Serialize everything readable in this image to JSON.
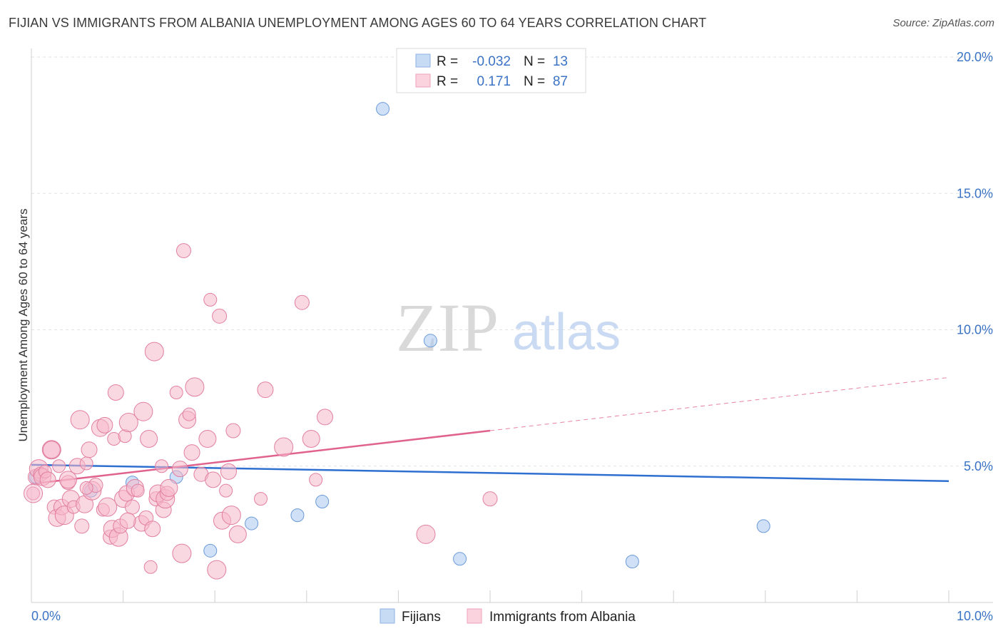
{
  "header": {
    "title": "FIJIAN VS IMMIGRANTS FROM ALBANIA UNEMPLOYMENT AMONG AGES 60 TO 64 YEARS CORRELATION CHART",
    "source": "Source: ZipAtlas.com"
  },
  "watermark": {
    "zip": "ZIP",
    "atlas": "atlas"
  },
  "legend": {
    "rows": [
      {
        "r_label": "R =",
        "r_value": "-0.032",
        "n_label": "N =",
        "n_value": "13",
        "color": "#a9c8f0"
      },
      {
        "r_label": "R =",
        "r_value": "0.171",
        "n_label": "N =",
        "n_value": "87",
        "color": "#f6b8cb"
      }
    ]
  },
  "bottom_legend": [
    {
      "label": "Fijians",
      "color": "#a9c8f0"
    },
    {
      "label": "Immigrants from Albania",
      "color": "#f6b8cb"
    }
  ],
  "chart_data": {
    "type": "scatter",
    "title": "FIJIAN VS IMMIGRANTS FROM ALBANIA UNEMPLOYMENT AMONG AGES 60 TO 64 YEARS CORRELATION CHART",
    "xlabel": "",
    "ylabel": "Unemployment Among Ages 60 to 64 years",
    "xlim": [
      0,
      10
    ],
    "ylim": [
      0,
      20
    ],
    "x_tick_labels": [
      "0.0%",
      "10.0%"
    ],
    "y_ticks": [
      5,
      10,
      15,
      20
    ],
    "y_tick_labels": [
      "5.0%",
      "10.0%",
      "15.0%",
      "20.0%"
    ],
    "grid": true,
    "series": [
      {
        "name": "Fijians",
        "color": "#a9c8f0",
        "stroke": "#6b9ad8",
        "points": [
          [
            0.05,
            4.6
          ],
          [
            0.65,
            4.1
          ],
          [
            1.1,
            4.4
          ],
          [
            1.58,
            4.6
          ],
          [
            1.95,
            1.9
          ],
          [
            2.4,
            2.9
          ],
          [
            2.9,
            3.2
          ],
          [
            3.17,
            3.7
          ],
          [
            3.83,
            18.1
          ],
          [
            4.35,
            9.6
          ],
          [
            4.67,
            1.6
          ],
          [
            6.55,
            1.5
          ],
          [
            7.98,
            2.8
          ]
        ],
        "trend": {
          "x": [
            0,
            10
          ],
          "y": [
            5.05,
            4.45
          ],
          "color": "#2f6fd0"
        }
      },
      {
        "name": "Immigrants from Albania",
        "color": "#f6b8cb",
        "stroke": "#e27fa0",
        "points": [
          [
            0.02,
            4.0
          ],
          [
            0.05,
            4.6
          ],
          [
            0.08,
            4.9
          ],
          [
            0.1,
            4.7
          ],
          [
            0.12,
            4.6
          ],
          [
            0.15,
            4.8
          ],
          [
            0.18,
            4.5
          ],
          [
            0.22,
            5.6
          ],
          [
            0.25,
            3.5
          ],
          [
            0.28,
            3.1
          ],
          [
            0.3,
            5.0
          ],
          [
            0.33,
            3.5
          ],
          [
            0.36,
            3.2
          ],
          [
            0.4,
            4.4
          ],
          [
            0.43,
            3.8
          ],
          [
            0.46,
            3.5
          ],
          [
            0.5,
            5.0
          ],
          [
            0.53,
            6.7
          ],
          [
            0.55,
            2.8
          ],
          [
            0.58,
            3.6
          ],
          [
            0.6,
            5.1
          ],
          [
            0.63,
            5.6
          ],
          [
            0.66,
            4.1
          ],
          [
            0.7,
            4.3
          ],
          [
            0.75,
            6.4
          ],
          [
            0.78,
            3.4
          ],
          [
            0.8,
            6.5
          ],
          [
            0.83,
            3.5
          ],
          [
            0.86,
            2.4
          ],
          [
            0.88,
            2.7
          ],
          [
            0.9,
            6.0
          ],
          [
            0.92,
            7.7
          ],
          [
            0.95,
            2.4
          ],
          [
            0.97,
            2.8
          ],
          [
            1.0,
            3.8
          ],
          [
            1.02,
            6.1
          ],
          [
            1.04,
            4.0
          ],
          [
            1.06,
            6.6
          ],
          [
            1.1,
            3.5
          ],
          [
            1.13,
            4.2
          ],
          [
            1.16,
            4.1
          ],
          [
            1.2,
            2.9
          ],
          [
            1.22,
            7.0
          ],
          [
            1.25,
            3.1
          ],
          [
            1.28,
            6.0
          ],
          [
            1.3,
            1.3
          ],
          [
            1.32,
            2.7
          ],
          [
            1.34,
            9.2
          ],
          [
            1.36,
            3.8
          ],
          [
            1.38,
            4.0
          ],
          [
            1.42,
            5.0
          ],
          [
            1.44,
            3.4
          ],
          [
            1.46,
            3.8
          ],
          [
            1.48,
            4.0
          ],
          [
            1.5,
            4.2
          ],
          [
            1.58,
            7.7
          ],
          [
            1.62,
            4.9
          ],
          [
            1.64,
            1.8
          ],
          [
            1.66,
            12.9
          ],
          [
            1.7,
            6.7
          ],
          [
            1.72,
            6.9
          ],
          [
            1.75,
            5.5
          ],
          [
            1.78,
            7.9
          ],
          [
            1.85,
            4.7
          ],
          [
            1.92,
            6.0
          ],
          [
            1.95,
            11.1
          ],
          [
            1.98,
            4.5
          ],
          [
            2.02,
            1.2
          ],
          [
            2.05,
            10.5
          ],
          [
            2.08,
            3.0
          ],
          [
            2.12,
            4.1
          ],
          [
            2.15,
            4.8
          ],
          [
            2.18,
            3.2
          ],
          [
            2.2,
            6.3
          ],
          [
            2.25,
            2.5
          ],
          [
            2.5,
            3.8
          ],
          [
            2.55,
            7.8
          ],
          [
            2.75,
            5.7
          ],
          [
            2.95,
            11.0
          ],
          [
            3.05,
            6.0
          ],
          [
            3.1,
            4.5
          ],
          [
            3.2,
            6.8
          ],
          [
            4.3,
            2.5
          ],
          [
            5.0,
            3.8
          ],
          [
            0.4,
            4.5
          ],
          [
            0.6,
            4.2
          ],
          [
            1.05,
            3.0
          ]
        ],
        "trend": {
          "x": [
            0,
            5.0
          ],
          "y": [
            4.35,
            6.3
          ],
          "dash_x": [
            5.0,
            10.0
          ],
          "dash_y": [
            6.3,
            8.25
          ],
          "color": "#e0628e"
        }
      }
    ]
  }
}
